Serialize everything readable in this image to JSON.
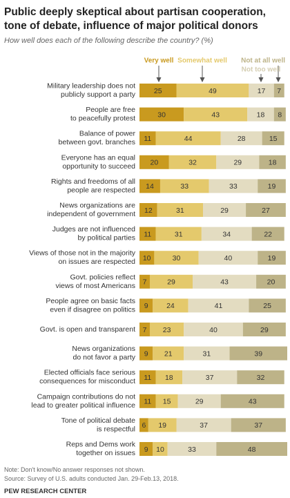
{
  "chart_data": {
    "type": "stacked-bar",
    "title": [
      "Public deeply skeptical about partisan cooperation,",
      "tone of debate, influence of major political donors"
    ],
    "subtitle": "How well does each of the following describe the country? (%)",
    "categories": [
      [
        "Military leadership does not",
        "publicly support a party"
      ],
      [
        "People are free",
        "to peacefully protest"
      ],
      [
        "Balance of power",
        "between govt. branches"
      ],
      [
        "Everyone has an equal",
        "opportunity to succeed"
      ],
      [
        "Rights and freedoms of all",
        "people are respected"
      ],
      [
        "News organizations are",
        "independent of government"
      ],
      [
        "Judges are not influenced",
        "by political parties"
      ],
      [
        "Views of those not in the majority",
        "on issues are respected"
      ],
      [
        "Govt. policies reflect",
        "views of most Americans"
      ],
      [
        "People agree on basic facts",
        "even if disagree on politics"
      ],
      [
        "Govt. is open and transparent"
      ],
      [
        "News organizations",
        "do not favor a party"
      ],
      [
        "Elected officials face serious",
        "consequences for misconduct"
      ],
      [
        "Campaign contributions do not",
        "lead to greater political influence"
      ],
      [
        "Tone of political debate",
        "is respectful"
      ],
      [
        "Reps and Dems work",
        "together on issues"
      ]
    ],
    "series": [
      {
        "name": "Very well",
        "color": "#c99a1f",
        "values": [
          25,
          30,
          11,
          20,
          14,
          12,
          11,
          10,
          7,
          9,
          7,
          9,
          11,
          11,
          6,
          9
        ]
      },
      {
        "name": "Somewhat well",
        "color": "#e4c96c",
        "values": [
          49,
          43,
          44,
          32,
          33,
          31,
          31,
          30,
          29,
          24,
          23,
          21,
          18,
          15,
          19,
          10
        ]
      },
      {
        "name": "Not too well",
        "color": "#e3dcc1",
        "values": [
          17,
          18,
          28,
          29,
          33,
          29,
          34,
          40,
          43,
          41,
          40,
          31,
          37,
          29,
          37,
          33
        ]
      },
      {
        "name": "Not at all well",
        "color": "#bdb388",
        "values": [
          7,
          8,
          15,
          18,
          19,
          27,
          22,
          19,
          20,
          25,
          29,
          39,
          32,
          43,
          37,
          48
        ]
      }
    ],
    "notes": [
      "Note: Don't know/No answer responses not shown.",
      "Source: Survey of U.S. adults conducted Jan. 29-Feb.13, 2018."
    ],
    "source": "PEW RESEARCH CENTER"
  }
}
